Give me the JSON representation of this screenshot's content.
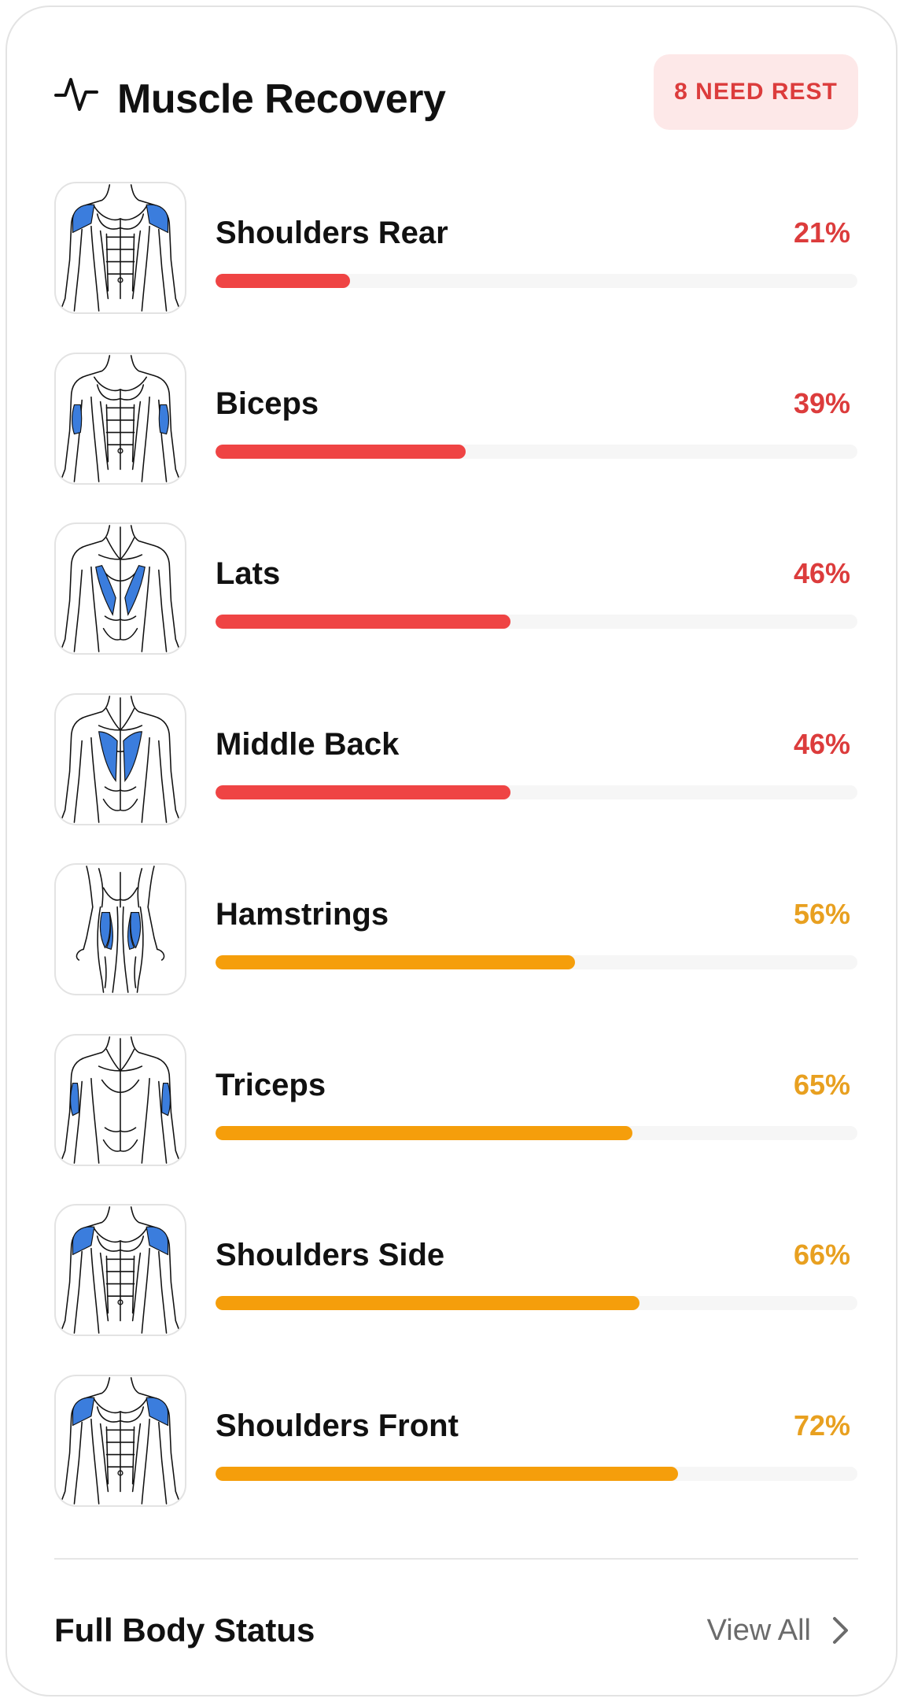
{
  "header": {
    "icon": "activity-pulse-icon",
    "title": "Muscle Recovery",
    "badge": "8 NEED REST"
  },
  "colors": {
    "low": "#ef4444",
    "low_text": "#dc3c3c",
    "mid": "#f59e0b",
    "mid_text": "#e8a020",
    "highlight": "#3b7ddd"
  },
  "muscles": [
    {
      "name": "Shoulders Rear",
      "percent_label": "21%",
      "recovery": 21,
      "level": "low",
      "view": "front",
      "highlight": "shoulders"
    },
    {
      "name": "Biceps",
      "percent_label": "39%",
      "recovery": 39,
      "level": "low",
      "view": "front",
      "highlight": "biceps"
    },
    {
      "name": "Lats",
      "percent_label": "46%",
      "recovery": 46,
      "level": "low",
      "view": "back",
      "highlight": "lats"
    },
    {
      "name": "Middle Back",
      "percent_label": "46%",
      "recovery": 46,
      "level": "low",
      "view": "back",
      "highlight": "midback"
    },
    {
      "name": "Hamstrings",
      "percent_label": "56%",
      "recovery": 56,
      "level": "mid",
      "view": "legs",
      "highlight": "hamstrings"
    },
    {
      "name": "Triceps",
      "percent_label": "65%",
      "recovery": 65,
      "level": "mid",
      "view": "back",
      "highlight": "triceps"
    },
    {
      "name": "Shoulders Side",
      "percent_label": "66%",
      "recovery": 66,
      "level": "mid",
      "view": "front",
      "highlight": "shoulders"
    },
    {
      "name": "Shoulders Front",
      "percent_label": "72%",
      "recovery": 72,
      "level": "mid",
      "view": "front",
      "highlight": "shoulders"
    }
  ],
  "footer": {
    "title": "Full Body Status",
    "link": "View All",
    "link_icon": "chevron-right-icon"
  }
}
